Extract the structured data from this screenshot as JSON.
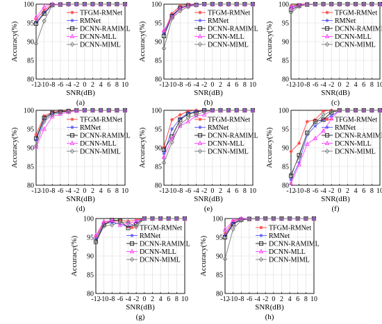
{
  "series_styles": [
    {
      "name": "TFGM-RMNet",
      "color": "#ff3b3b",
      "marker": "star"
    },
    {
      "name": "RMNet",
      "color": "#5555ff",
      "marker": "star"
    },
    {
      "name": "DCNN-RAMIML",
      "color": "#1a1a1a",
      "marker": "square"
    },
    {
      "name": "DCNN-MLL",
      "color": "#ff44ff",
      "marker": "triangle"
    },
    {
      "name": "DCNN-MIML",
      "color": "#7a7a7a",
      "marker": "diamond"
    }
  ],
  "chart_data": [
    {
      "panel": "(a)",
      "type": "line",
      "xlabel": "SNR(dB)",
      "ylabel": "Accuracy(%)",
      "xlim": [
        -12,
        10
      ],
      "ylim": [
        80,
        100
      ],
      "x": [
        -12,
        -10,
        -8,
        -6,
        -4,
        -2,
        0,
        2,
        4,
        6,
        8,
        10
      ],
      "xticks": [
        "-12",
        "-10",
        "-8",
        "-6",
        "-4",
        "-2",
        "0",
        "2",
        "4",
        "6",
        "8",
        "10"
      ],
      "yticks": [
        "80",
        "85",
        "90",
        "95",
        "100"
      ],
      "legend": "top-right",
      "series": [
        {
          "name": "TFGM-RMNet",
          "values": [
            95.9,
            98.4,
            99.9,
            100,
            100,
            100,
            100,
            100,
            100,
            100,
            100,
            100
          ]
        },
        {
          "name": "RMNet",
          "values": [
            95.2,
            97.8,
            99.8,
            100,
            100,
            100,
            100,
            100,
            100,
            100,
            100,
            100
          ]
        },
        {
          "name": "DCNN-RAMIML",
          "values": [
            94.8,
            97.5,
            99.8,
            99.9,
            100,
            100,
            100,
            100,
            100,
            100,
            100,
            100
          ]
        },
        {
          "name": "DCNN-MLL",
          "values": [
            96.5,
            99.3,
            100,
            100,
            100,
            100,
            100,
            100,
            100,
            100,
            100,
            100
          ]
        },
        {
          "name": "DCNN-MIML",
          "values": [
            89.5,
            95.5,
            99.7,
            99.9,
            100,
            100,
            100,
            100,
            100,
            100,
            100,
            100
          ]
        }
      ]
    },
    {
      "panel": "(b)",
      "type": "line",
      "xlabel": "SNR(dB)",
      "ylabel": "Accuracy(%)",
      "xlim": [
        -12,
        10
      ],
      "ylim": [
        80,
        100
      ],
      "x": [
        -12,
        -10,
        -8,
        -6,
        -4,
        -2,
        0,
        2,
        4,
        6,
        8,
        10
      ],
      "xticks": [
        "-12",
        "-10",
        "-8",
        "-6",
        "-4",
        "-2",
        "0",
        "2",
        "4",
        "6",
        "8",
        "10"
      ],
      "yticks": [
        "80",
        "85",
        "90",
        "95",
        "100"
      ],
      "legend": "top-right",
      "series": [
        {
          "name": "TFGM-RMNet",
          "values": [
            92.5,
            97.5,
            99.5,
            100,
            100,
            100,
            100,
            100,
            100,
            100,
            100,
            100
          ]
        },
        {
          "name": "RMNet",
          "values": [
            92.2,
            97.0,
            99.0,
            99.7,
            100,
            100,
            100,
            100,
            100,
            100,
            100,
            100
          ]
        },
        {
          "name": "DCNN-RAMIML",
          "values": [
            91.5,
            96.8,
            99.0,
            99.6,
            99.8,
            100,
            100,
            100,
            100,
            100,
            100,
            100
          ]
        },
        {
          "name": "DCNN-MLL",
          "values": [
            93.0,
            96.5,
            98.8,
            99.5,
            99.8,
            100,
            100,
            100,
            100,
            100,
            100,
            100
          ]
        },
        {
          "name": "DCNN-MIML",
          "values": [
            88.2,
            96.2,
            98.2,
            99.3,
            99.8,
            100,
            100,
            100,
            100,
            100,
            100,
            100
          ]
        }
      ]
    },
    {
      "panel": "(c)",
      "type": "line",
      "xlabel": "SNR(dB)",
      "ylabel": "Accuracy(%)",
      "xlim": [
        -12,
        10
      ],
      "ylim": [
        80,
        100
      ],
      "x": [
        -12,
        -10,
        -8,
        -6,
        -4,
        -2,
        0,
        2,
        4,
        6,
        8,
        10
      ],
      "xticks": [
        "-12",
        "-10",
        "-8",
        "-6",
        "-4",
        "-2",
        "0",
        "2",
        "4",
        "6",
        "8",
        "10"
      ],
      "yticks": [
        "80",
        "85",
        "90",
        "95",
        "100"
      ],
      "legend": "top-right",
      "series": [
        {
          "name": "TFGM-RMNet",
          "values": [
            99.5,
            99.9,
            100,
            100,
            100,
            100,
            100,
            100,
            100,
            100,
            100,
            100
          ]
        },
        {
          "name": "RMNet",
          "values": [
            99.2,
            99.8,
            100,
            100,
            100,
            100,
            100,
            100,
            100,
            100,
            100,
            100
          ]
        },
        {
          "name": "DCNN-RAMIML",
          "values": [
            98.5,
            99.6,
            99.9,
            100,
            100,
            100,
            100,
            100,
            100,
            100,
            100,
            100
          ]
        },
        {
          "name": "DCNN-MLL",
          "values": [
            99.0,
            99.7,
            100,
            100,
            100,
            100,
            100,
            100,
            100,
            100,
            100,
            100
          ]
        },
        {
          "name": "DCNN-MIML",
          "values": [
            97.8,
            99.4,
            99.9,
            100,
            100,
            100,
            100,
            100,
            100,
            100,
            100,
            100
          ]
        }
      ]
    },
    {
      "panel": "(d)",
      "type": "line",
      "xlabel": "SNR(dB)",
      "ylabel": "Accuracy(%)",
      "xlim": [
        -12,
        10
      ],
      "ylim": [
        80,
        100
      ],
      "x": [
        -12,
        -10,
        -8,
        -6,
        -4,
        -2,
        0,
        2,
        4,
        6,
        8,
        10
      ],
      "xticks": [
        "-12",
        "-10",
        "-8",
        "-6",
        "-4",
        "-2",
        "0",
        "2",
        "4",
        "6",
        "8",
        "10"
      ],
      "yticks": [
        "80",
        "85",
        "90",
        "95",
        "100"
      ],
      "legend": "right",
      "series": [
        {
          "name": "TFGM-RMNet",
          "values": [
            93.5,
            98.5,
            99.5,
            99.8,
            100,
            100,
            100,
            100,
            100,
            100,
            100,
            100
          ]
        },
        {
          "name": "RMNet",
          "values": [
            92.0,
            97.5,
            99.2,
            99.6,
            99.8,
            100,
            100,
            100,
            100,
            100,
            100,
            100
          ]
        },
        {
          "name": "DCNN-RAMIML",
          "values": [
            92.5,
            98.0,
            99.3,
            99.6,
            99.8,
            100,
            100,
            100,
            100,
            100,
            100,
            100
          ]
        },
        {
          "name": "DCNN-MLL",
          "values": [
            90.2,
            95.0,
            98.3,
            99.0,
            99.5,
            99.8,
            100,
            100,
            100,
            100,
            100,
            100
          ]
        },
        {
          "name": "DCNN-MIML",
          "values": [
            90.5,
            97.0,
            98.8,
            99.4,
            99.7,
            100,
            100,
            100,
            100,
            100,
            100,
            100
          ]
        }
      ]
    },
    {
      "panel": "(e)",
      "type": "line",
      "xlabel": "SNR(dB)",
      "ylabel": "Accuracy(%)",
      "xlim": [
        -12,
        10
      ],
      "ylim": [
        80,
        100
      ],
      "x": [
        -12,
        -10,
        -8,
        -6,
        -4,
        -2,
        0,
        2,
        4,
        6,
        8,
        10
      ],
      "xticks": [
        "-12",
        "-10",
        "-8",
        "-6",
        "-4",
        "-2",
        "0",
        "2",
        "4",
        "6",
        "8",
        "10"
      ],
      "yticks": [
        "80",
        "85",
        "90",
        "95",
        "100"
      ],
      "legend": "right",
      "series": [
        {
          "name": "TFGM-RMNet",
          "values": [
            90.2,
            97.5,
            98.8,
            99.8,
            100,
            100,
            100,
            100,
            100,
            100,
            100,
            100
          ]
        },
        {
          "name": "RMNet",
          "values": [
            88.5,
            95.0,
            97.8,
            99.3,
            99.7,
            100,
            100,
            100,
            100,
            100,
            100,
            100
          ]
        },
        {
          "name": "DCNN-RAMIML",
          "values": [
            89.5,
            93.0,
            97.5,
            99.0,
            99.5,
            100,
            100,
            100,
            100,
            100,
            100,
            100
          ]
        },
        {
          "name": "DCNN-MLL",
          "values": [
            87.5,
            92.5,
            95.8,
            97.0,
            98.5,
            98.8,
            100,
            100,
            100,
            100,
            100,
            100
          ]
        },
        {
          "name": "DCNN-MIML",
          "values": [
            86.0,
            91.5,
            96.2,
            98.0,
            98.8,
            99.6,
            100,
            100,
            100,
            100,
            100,
            100
          ]
        }
      ]
    },
    {
      "panel": "(f)",
      "type": "line",
      "xlabel": "SNR(dB)",
      "ylabel": "Accuracy(%)",
      "xlim": [
        -12,
        10
      ],
      "ylim": [
        80,
        100
      ],
      "x": [
        -12,
        -10,
        -8,
        -6,
        -4,
        -2,
        0,
        2,
        4,
        6,
        8,
        10
      ],
      "xticks": [
        "-12",
        "-10",
        "-8",
        "-6",
        "-4",
        "-2",
        "0",
        "2",
        "4",
        "6",
        "8",
        "10"
      ],
      "yticks": [
        "80",
        "85",
        "90",
        "95",
        "100"
      ],
      "legend": "right",
      "series": [
        {
          "name": "TFGM-RMNet",
          "values": [
            89.0,
            91.2,
            97.0,
            97.5,
            99.8,
            100,
            100,
            100,
            100,
            100,
            100,
            100
          ]
        },
        {
          "name": "RMNet",
          "values": [
            81.5,
            86.0,
            93.5,
            95.8,
            97.5,
            98.5,
            100,
            100,
            100,
            100,
            100,
            100
          ]
        },
        {
          "name": "DCNN-RAMIML",
          "values": [
            82.5,
            88.0,
            94.0,
            97.0,
            97.5,
            99.5,
            100,
            100,
            100,
            100,
            100,
            100
          ]
        },
        {
          "name": "DCNN-MLL",
          "values": [
            80.5,
            85.5,
            91.0,
            92.5,
            94.5,
            97.8,
            100,
            100,
            100,
            100,
            100,
            100
          ]
        },
        {
          "name": "DCNN-MIML",
          "values": [
            83.0,
            87.5,
            94.0,
            96.8,
            98.8,
            99.8,
            100,
            100,
            100,
            100,
            100,
            100
          ]
        }
      ]
    },
    {
      "panel": "(g)",
      "type": "line",
      "xlabel": "SNR(dB)",
      "ylabel": "Accuracy(%)",
      "xlim": [
        -12,
        10
      ],
      "ylim": [
        80,
        100
      ],
      "x": [
        -12,
        -10,
        -8,
        -6,
        -4,
        -2,
        0,
        2,
        4,
        6,
        8,
        10
      ],
      "xticks": [
        "-12",
        "-10",
        "-8",
        "-6",
        "-4",
        "-2",
        "0",
        "2",
        "4",
        "6",
        "8",
        "10"
      ],
      "yticks": [
        "80",
        "85",
        "90",
        "95",
        "100"
      ],
      "legend": "right",
      "series": [
        {
          "name": "TFGM-RMNet",
          "values": [
            95.0,
            99.0,
            99.2,
            99.5,
            99.3,
            99.6,
            100,
            100,
            100,
            100,
            100,
            100
          ]
        },
        {
          "name": "RMNet",
          "values": [
            94.5,
            98.5,
            99.0,
            98.5,
            97.8,
            99.0,
            100,
            100,
            100,
            100,
            100,
            100
          ]
        },
        {
          "name": "DCNN-RAMIML",
          "values": [
            93.8,
            98.3,
            99.6,
            99.4,
            97.5,
            98.5,
            100,
            100,
            100,
            100,
            100,
            100
          ]
        },
        {
          "name": "DCNN-MLL",
          "values": [
            95.5,
            99.2,
            99.5,
            98.2,
            98.8,
            99.2,
            100,
            100,
            100,
            100,
            100,
            100
          ]
        },
        {
          "name": "DCNN-MIML",
          "values": [
            93.5,
            98.0,
            98.3,
            99.0,
            99.0,
            97.8,
            100,
            100,
            100,
            100,
            100,
            100
          ]
        }
      ]
    },
    {
      "panel": "(h)",
      "type": "line",
      "xlabel": "SNR(dB)",
      "ylabel": "Accuracy(%)",
      "xlim": [
        -12,
        10
      ],
      "ylim": [
        80,
        100
      ],
      "x": [
        -12,
        -10,
        -8,
        -6,
        -4,
        -2,
        0,
        2,
        4,
        6,
        8,
        10
      ],
      "xticks": [
        "-12",
        "-10",
        "-8",
        "-6",
        "-4",
        "-2",
        "0",
        "2",
        "4",
        "6",
        "8",
        "10"
      ],
      "yticks": [
        "80",
        "85",
        "90",
        "95",
        "100"
      ],
      "legend": "right",
      "series": [
        {
          "name": "TFGM-RMNet",
          "values": [
            96.0,
            99.3,
            99.9,
            100,
            100,
            100,
            100,
            100,
            100,
            100,
            100,
            100
          ]
        },
        {
          "name": "RMNet",
          "values": [
            95.5,
            98.8,
            99.8,
            100,
            100,
            100,
            100,
            100,
            100,
            100,
            100,
            100
          ]
        },
        {
          "name": "DCNN-RAMIML",
          "values": [
            95.0,
            98.5,
            99.7,
            99.9,
            100,
            100,
            100,
            100,
            100,
            100,
            100,
            100
          ]
        },
        {
          "name": "DCNN-MLL",
          "values": [
            97.0,
            99.5,
            100,
            100,
            100,
            100,
            100,
            100,
            100,
            100,
            100,
            100
          ]
        },
        {
          "name": "DCNN-MIML",
          "values": [
            89.2,
            97.2,
            99.5,
            99.9,
            100,
            100,
            100,
            100,
            100,
            100,
            100,
            100
          ]
        }
      ]
    }
  ]
}
